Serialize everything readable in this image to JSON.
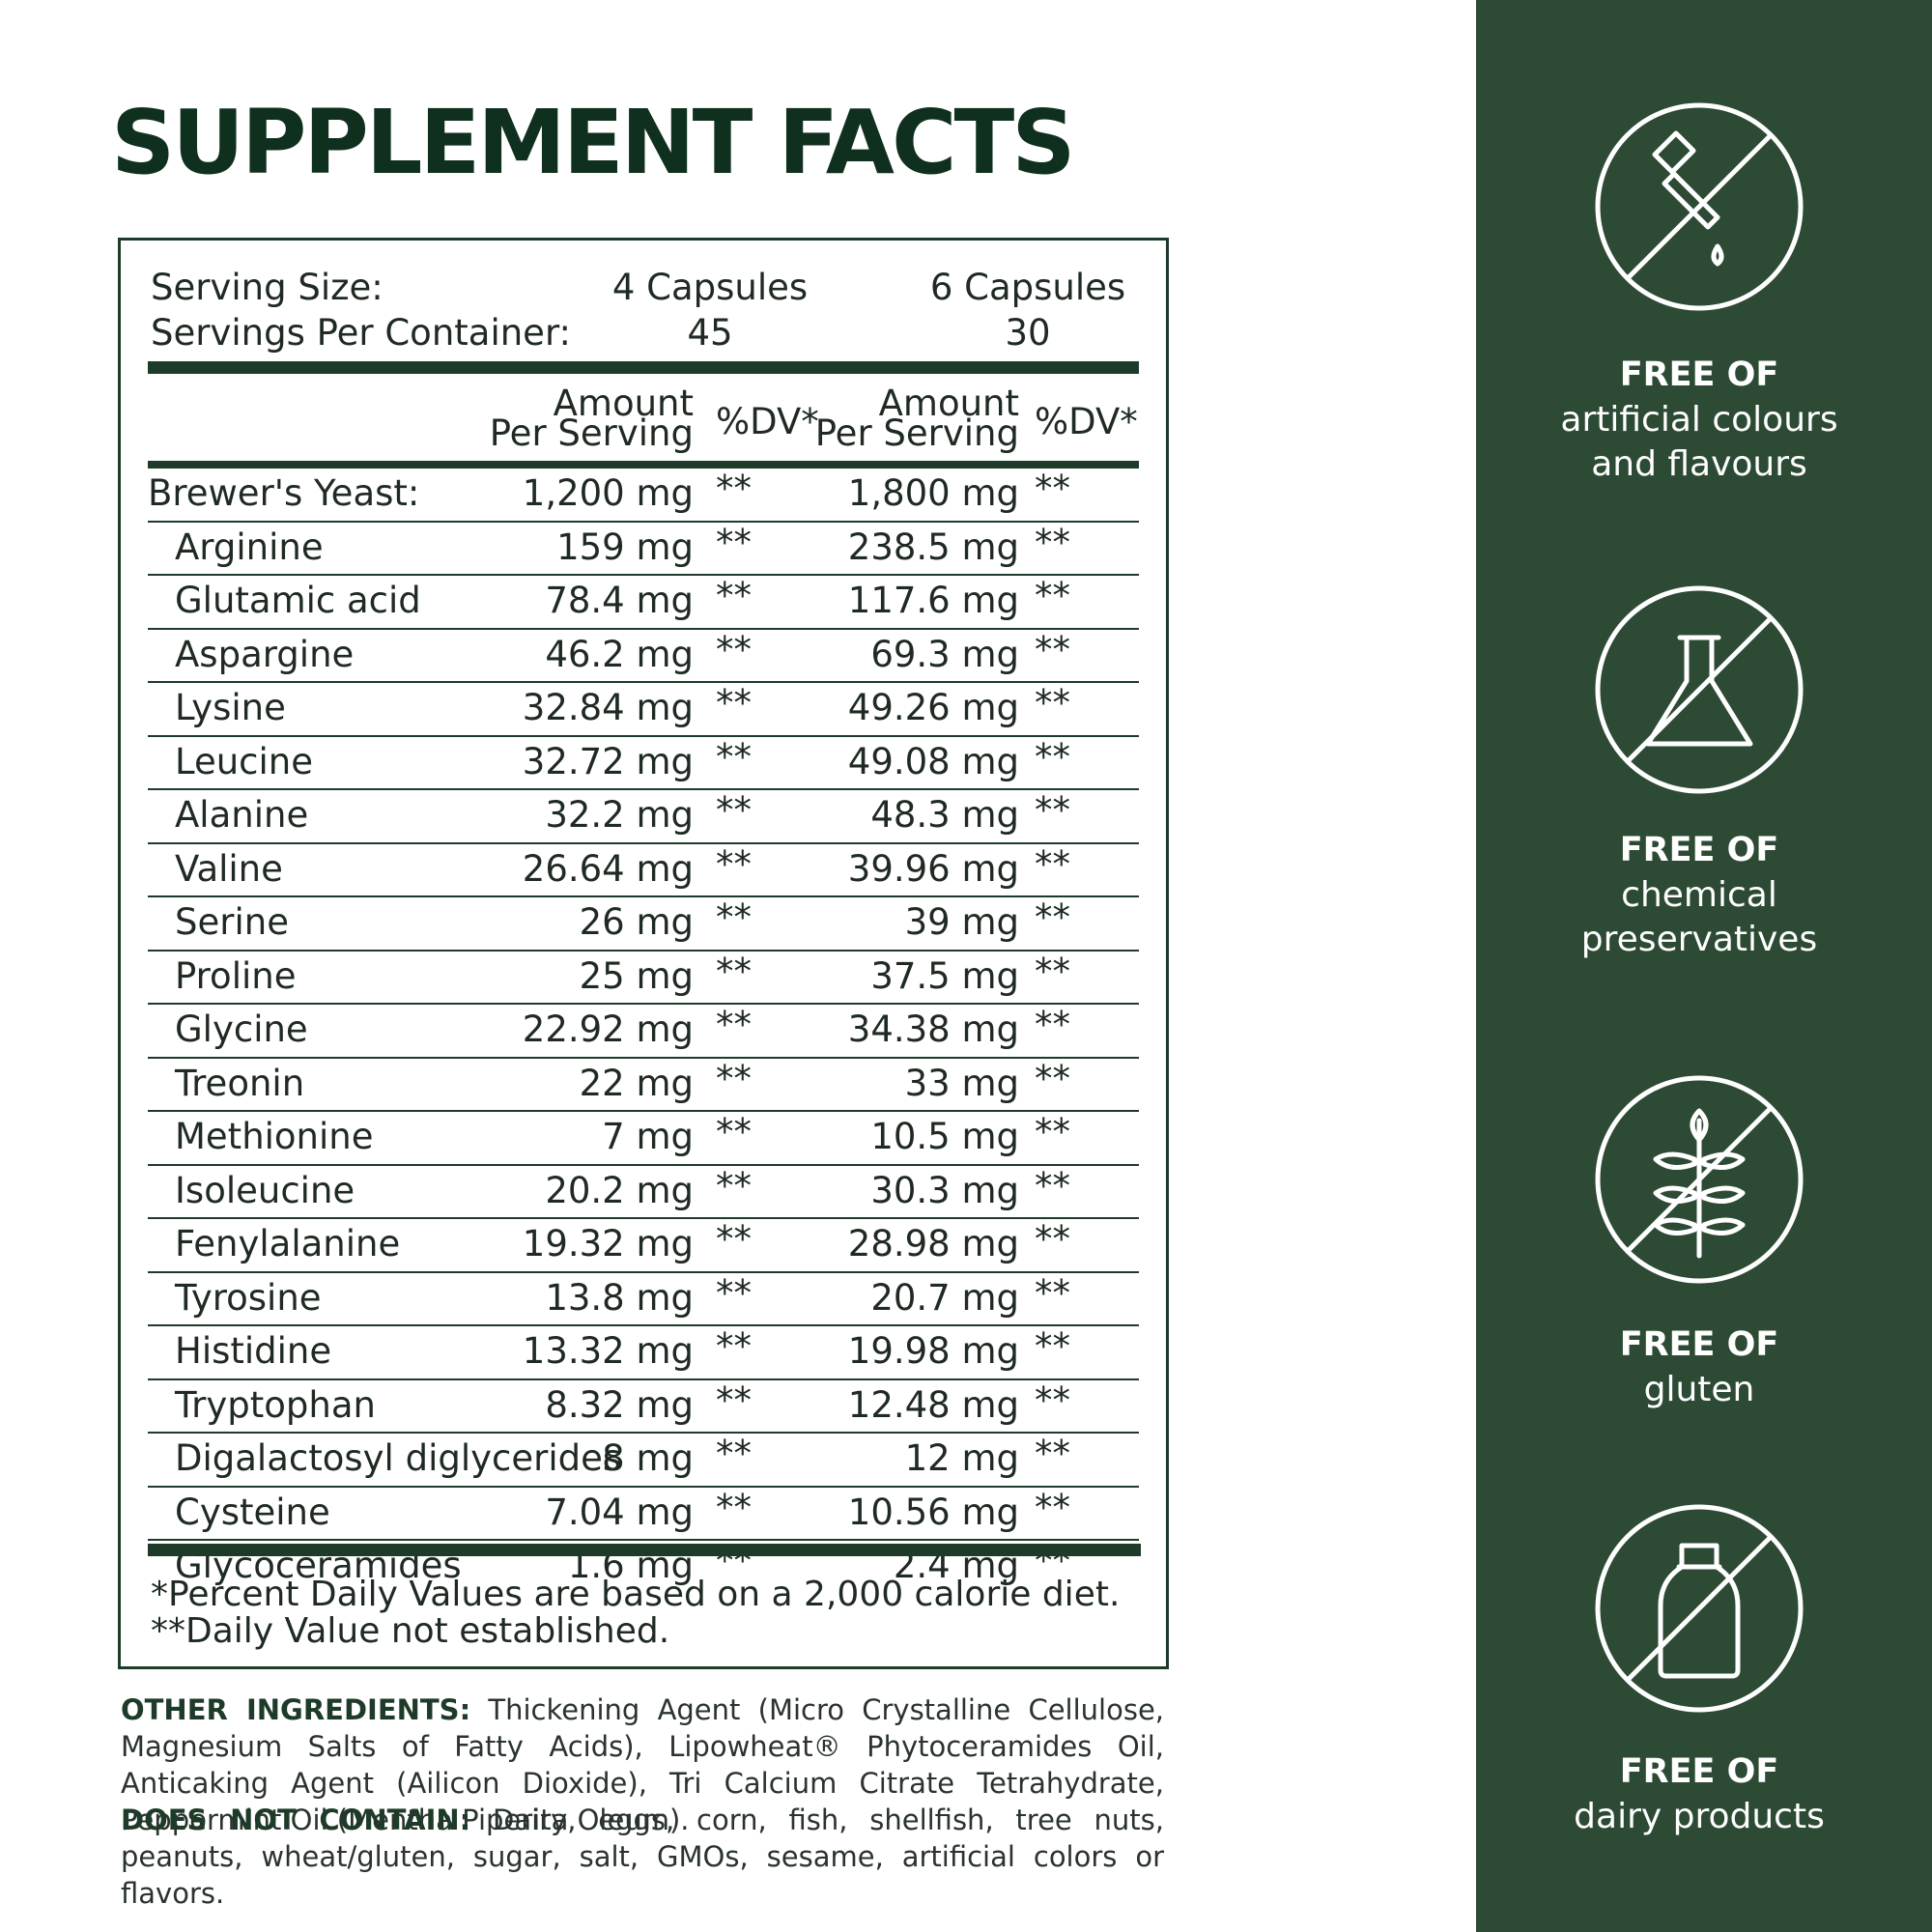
{
  "title": "SUPPLEMENT FACTS",
  "serving": {
    "size_label": "Serving Size:",
    "per_container_label": "Servings Per Container:",
    "columns": [
      {
        "size": "4 Capsules",
        "servings": "45"
      },
      {
        "size": "6 Capsules",
        "servings": "30"
      }
    ]
  },
  "table": {
    "header": [
      {
        "amount": [
          "Amount",
          "Per Serving"
        ],
        "dv": "%DV*"
      },
      {
        "amount": [
          "Amount",
          "Per Serving"
        ],
        "dv": "%DV*"
      }
    ],
    "rows": [
      [
        "Brewer's Yeast:",
        "1,200 mg",
        "**",
        "1,800 mg",
        "**"
      ],
      [
        "Arginine",
        "159 mg",
        "**",
        "238.5 mg",
        "**"
      ],
      [
        "Glutamic acid",
        "78.4 mg",
        "**",
        "117.6 mg",
        "**"
      ],
      [
        "Aspargine",
        "46.2 mg",
        "**",
        "69.3 mg",
        "**"
      ],
      [
        "Lysine",
        "32.84 mg",
        "**",
        "49.26 mg",
        "**"
      ],
      [
        "Leucine",
        "32.72 mg",
        "**",
        "49.08 mg",
        "**"
      ],
      [
        "Alanine",
        "32.2 mg",
        "**",
        "48.3 mg",
        "**"
      ],
      [
        "Valine",
        "26.64 mg",
        "**",
        "39.96 mg",
        "**"
      ],
      [
        "Serine",
        "26 mg",
        "**",
        "39 mg",
        "**"
      ],
      [
        "Proline",
        "25 mg",
        "**",
        "37.5 mg",
        "**"
      ],
      [
        "Glycine",
        "22.92 mg",
        "**",
        "34.38 mg",
        "**"
      ],
      [
        "Treonin",
        "22 mg",
        "**",
        "33 mg",
        "**"
      ],
      [
        "Methionine",
        "7 mg",
        "**",
        "10.5 mg",
        "**"
      ],
      [
        "Isoleucine",
        "20.2 mg",
        "**",
        "30.3 mg",
        "**"
      ],
      [
        "Fenylalanine",
        "19.32 mg",
        "**",
        "28.98 mg",
        "**"
      ],
      [
        "Tyrosine",
        "13.8 mg",
        "**",
        "20.7 mg",
        "**"
      ],
      [
        "Histidine",
        "13.32 mg",
        "**",
        "19.98 mg",
        "**"
      ],
      [
        "Tryptophan",
        "8.32 mg",
        "**",
        "12.48 mg",
        "**"
      ],
      [
        "Digalactosyl diglycerides",
        "8 mg",
        "**",
        "12 mg",
        "**"
      ],
      [
        "Cysteine",
        "7.04 mg",
        "**",
        "10.56 mg",
        "**"
      ],
      [
        "Glycoceramides",
        "1.6 mg",
        "**",
        "2.4 mg",
        "**"
      ]
    ]
  },
  "footnotes": [
    "*Percent Daily Values are based on a 2,000 calorie diet.",
    "**Daily Value not established."
  ],
  "other_ingredients": {
    "label": "OTHER INGREDIENTS:",
    "text": "Thickening Agent (Micro Crystalline Cellulose, Magnesium Salts of Fatty Acids), Lipowheat® Phytoceramides Oil, Anticaking Agent (Ailicon Dioxide), Tri Calcium Citrate Tetrahydrate, Peppermint Oil (Mentha Piperita Oleum)."
  },
  "does_not_contain": {
    "label": "DOES NOT CONTAIN:",
    "text": "Dairy, eggs, corn, fish, shellfish, tree nuts, peanuts, wheat/gluten, sugar, salt, GMOs, sesame, artificial colors or flavors."
  },
  "side": [
    {
      "heading": "FREE OF",
      "lines": [
        "artificial colours",
        "and flavours"
      ]
    },
    {
      "heading": "FREE OF",
      "lines": [
        "chemical",
        "preservatives"
      ]
    },
    {
      "heading": "FREE OF",
      "lines": [
        "gluten"
      ]
    },
    {
      "heading": "FREE OF",
      "lines": [
        "dairy products"
      ]
    }
  ]
}
